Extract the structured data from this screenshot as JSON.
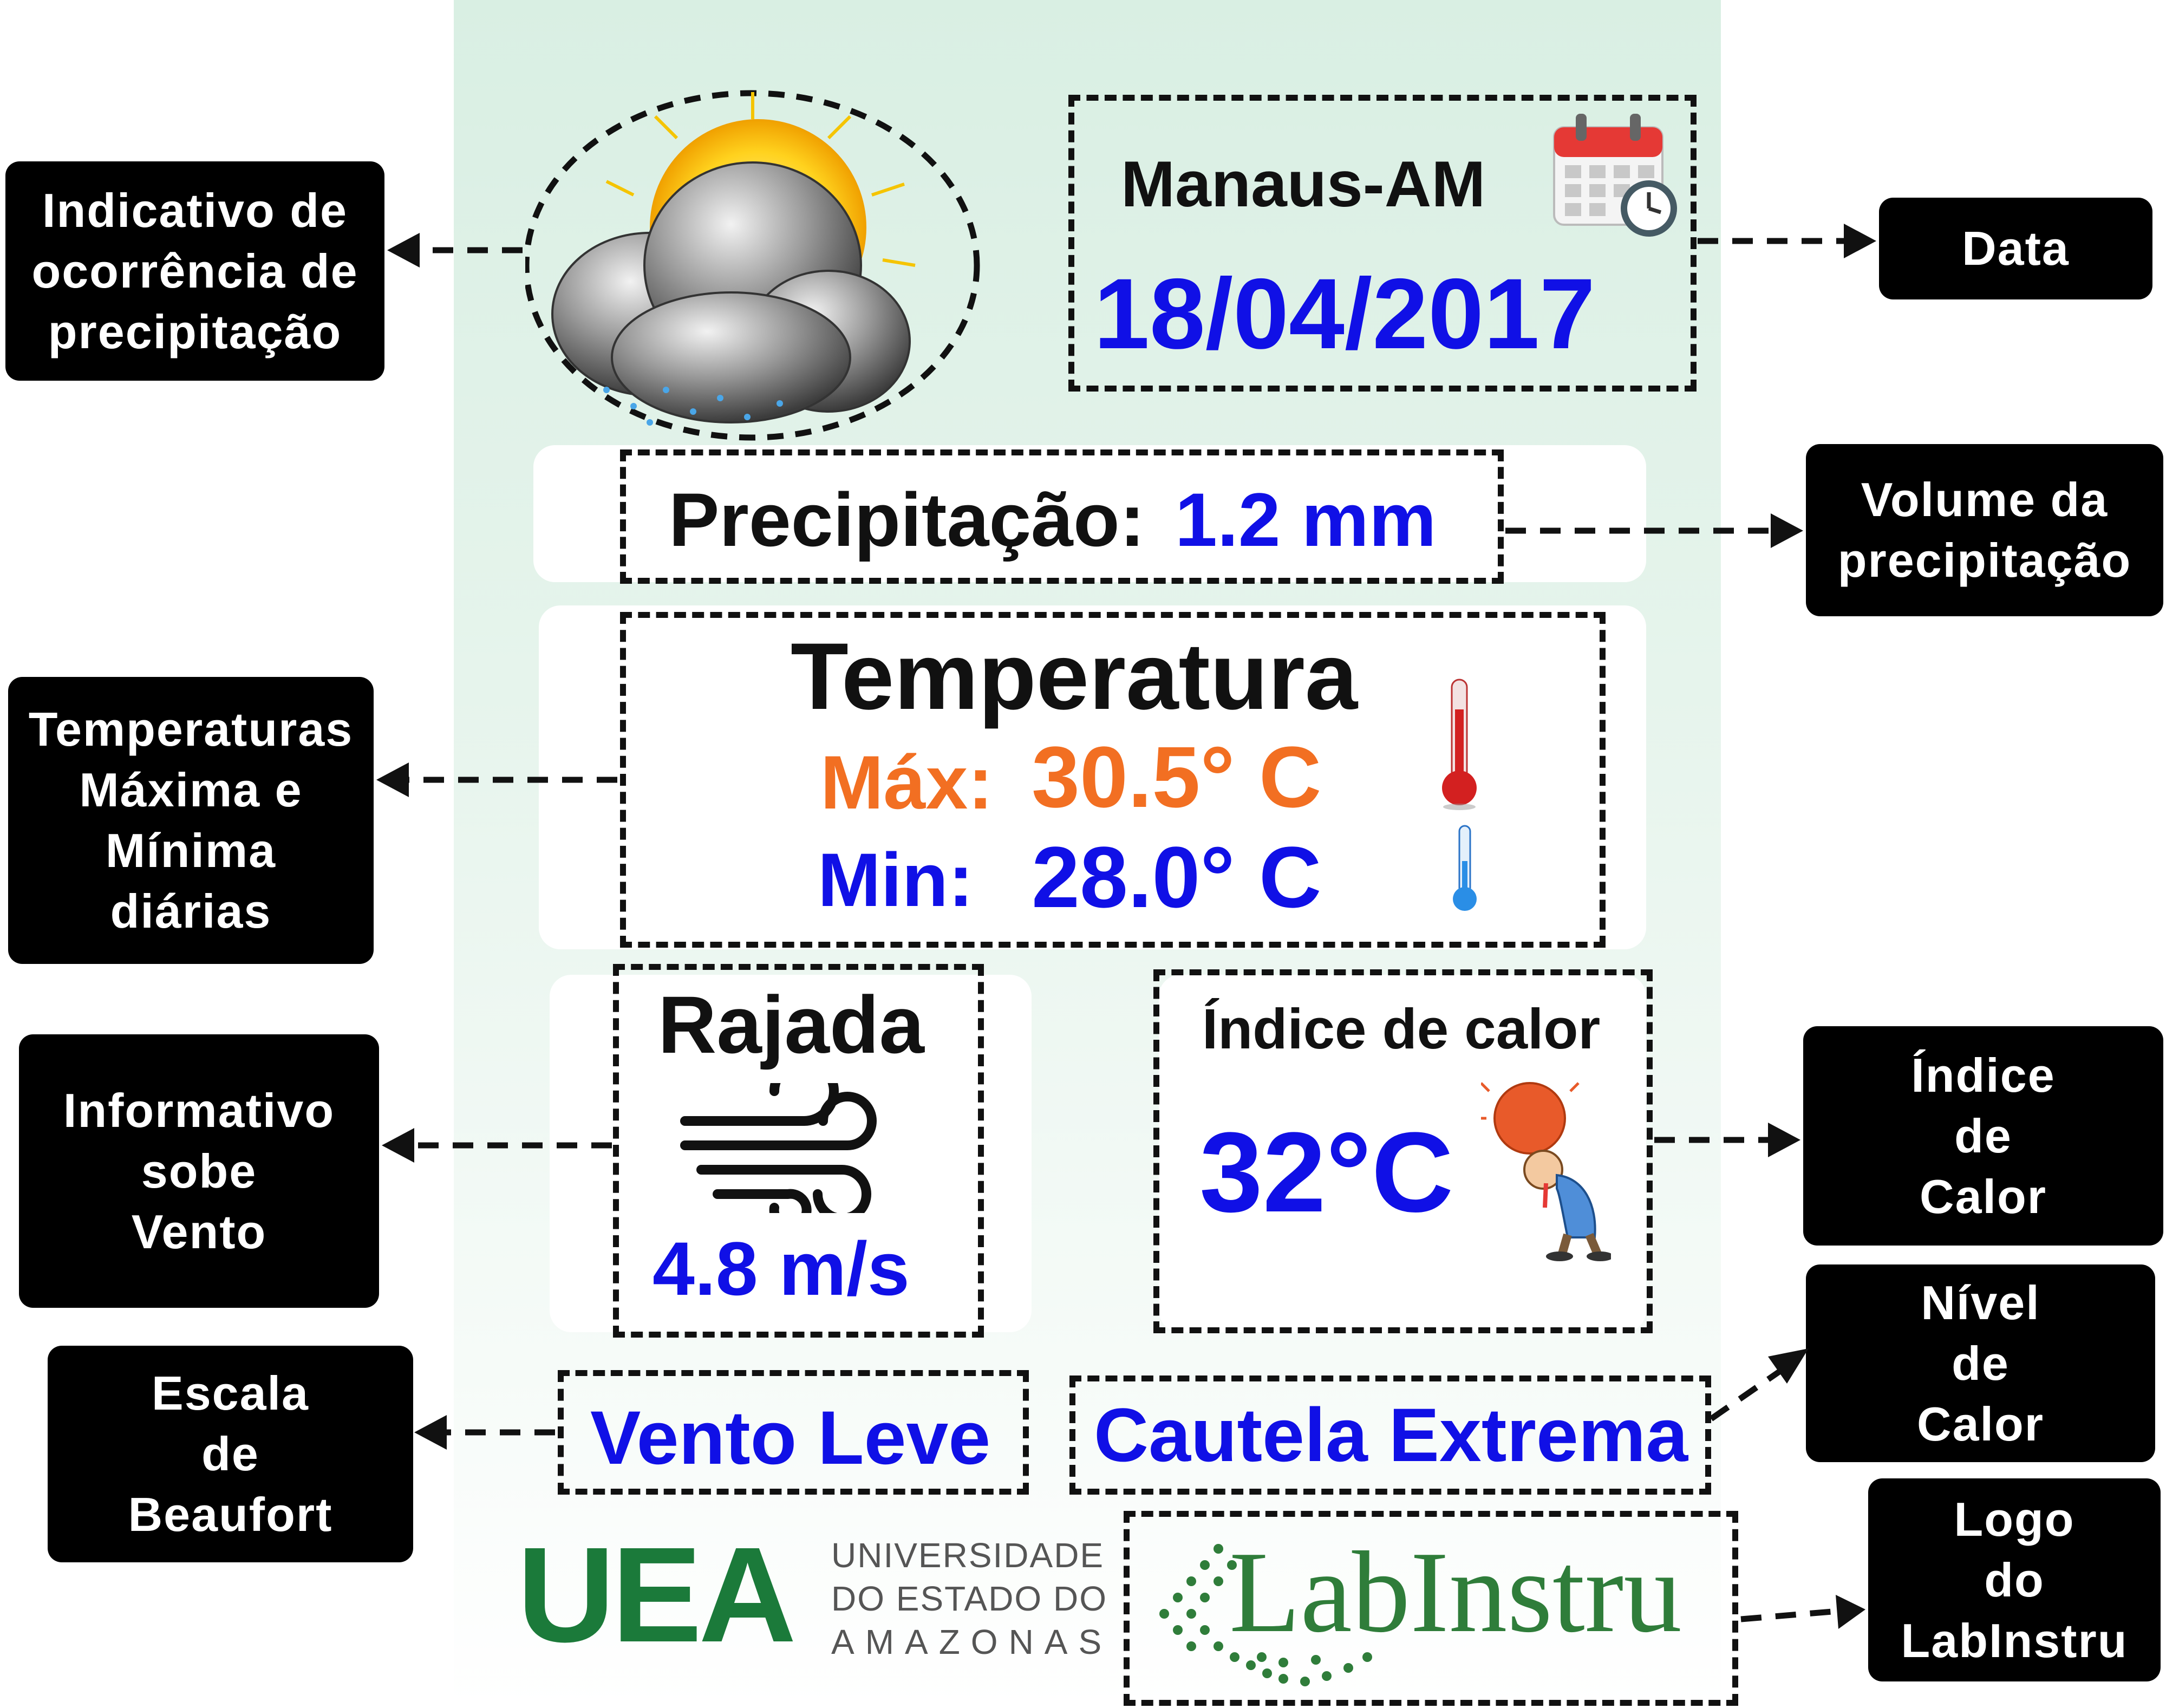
{
  "station": {
    "city": "Manaus-AM",
    "date": "18/04/2017"
  },
  "precipitation": {
    "label": "Precipitação:",
    "value": "1.2 mm"
  },
  "temperature": {
    "title": "Temperatura",
    "max_label": "Máx:",
    "max_value": "30.5° C",
    "min_label": "Min:",
    "min_value": "28.0° C"
  },
  "wind": {
    "title": "Rajada",
    "value": "4.8 m/s",
    "beaufort": "Vento Leve"
  },
  "heat_index": {
    "title": "Índice de calor",
    "value": "32°C",
    "level": "Cautela Extrema"
  },
  "logos": {
    "uea_letters": "UEA",
    "uea_line1": "UNIVERSIDADE",
    "uea_line2": "DO ESTADO DO",
    "uea_line3": "AMAZONAS",
    "labinstru": "LabInstru"
  },
  "annotations": {
    "precip_indicator": "Indicativo de\nocorrência de\nprecipitação",
    "date": "Data",
    "precip_volume": "Volume da\nprecipitação",
    "temperatures": "Temperaturas\nMáxima e\nMínima\ndiárias",
    "wind_info": "Informativo\nsobe\nVento",
    "beaufort": "Escala\nde\nBeaufort",
    "heat_index": "Índice\nde\nCalor",
    "heat_level": "Nível\nde\nCalor",
    "lab_logo": "Logo\ndo\nLabInstru"
  },
  "colors": {
    "blue": "#1010e6",
    "orange": "#f26f22",
    "label_bg": "#000000",
    "uea_green": "#1b7a3a",
    "lab_green": "#2f7d3a"
  }
}
